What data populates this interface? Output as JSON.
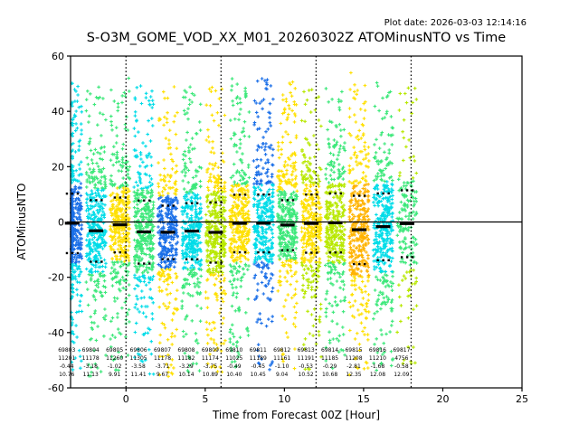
{
  "chart_data": {
    "type": "scatter",
    "title": "S-O3M_GOME_VOD_XX_M01_20260302Z ATOMinusNTO vs Time",
    "plot_date": "Plot date: 2026-03-03 12:14:16",
    "xlabel": "Time from Forecast 00Z [Hour]",
    "ylabel": "ATOMinusNTO",
    "xlim": [
      -3.5,
      25
    ],
    "ylim": [
      -60,
      60
    ],
    "xticks": [
      0,
      5,
      10,
      15,
      20,
      25
    ],
    "yticks": [
      -60,
      -40,
      -20,
      0,
      20,
      40,
      60
    ],
    "synoptic_vlines": [
      0,
      6,
      12,
      18
    ],
    "zero_line": 0,
    "grid": false,
    "legend": "none",
    "marker": "plus",
    "colors": {
      "axis": "#000000",
      "blue": "#1a6fe8",
      "cyan": "#00dce8",
      "green": "#3ce87a",
      "yellowgreen": "#b8e800",
      "yellow": "#ffe000",
      "orange": "#ffb300"
    },
    "orbits": [
      {
        "id": "69803",
        "x": -3.4,
        "count": 11201,
        "mean": -0.44,
        "std": 10.76,
        "core": "#1a6fe8",
        "fringe": "#00dce8"
      },
      {
        "id": "69804",
        "x": -1.89,
        "count": 11178,
        "mean": -3.18,
        "std": 11.13,
        "core": "#00dce8",
        "fringe": "#3ce87a"
      },
      {
        "id": "69805",
        "x": -0.38,
        "count": 11260,
        "mean": -1.02,
        "std": 9.91,
        "core": "#ffe000",
        "fringe": "#3ce87a"
      },
      {
        "id": "69806",
        "x": 1.13,
        "count": 11305,
        "mean": -3.58,
        "std": 11.41,
        "core": "#3ce87a",
        "fringe": "#00dce8"
      },
      {
        "id": "69807",
        "x": 2.64,
        "count": 11178,
        "mean": -3.71,
        "std": 9.67,
        "core": "#1a6fe8",
        "fringe": "#ffe000"
      },
      {
        "id": "69808",
        "x": 4.15,
        "count": 11182,
        "mean": -3.29,
        "std": 10.14,
        "core": "#00dce8",
        "fringe": "#3ce87a"
      },
      {
        "id": "69809",
        "x": 5.66,
        "count": 11174,
        "mean": -3.75,
        "std": 10.89,
        "core": "#b8e800",
        "fringe": "#ffe000"
      },
      {
        "id": "69810",
        "x": 7.17,
        "count": 11025,
        "mean": -0.49,
        "std": 10.4,
        "core": "#ffe000",
        "fringe": "#3ce87a"
      },
      {
        "id": "69811",
        "x": 8.68,
        "count": 11189,
        "mean": -0.45,
        "std": 10.45,
        "core": "#00dce8",
        "fringe": "#1a6fe8"
      },
      {
        "id": "69812",
        "x": 10.19,
        "count": 11161,
        "mean": -1.1,
        "std": 9.04,
        "core": "#3ce87a",
        "fringe": "#ffe000"
      },
      {
        "id": "69813",
        "x": 11.7,
        "count": 11191,
        "mean": -0.53,
        "std": 10.52,
        "core": "#ffe000",
        "fringe": "#b8e800"
      },
      {
        "id": "69814",
        "x": 13.21,
        "count": 11185,
        "mean": -0.29,
        "std": 10.68,
        "core": "#b8e800",
        "fringe": "#3ce87a"
      },
      {
        "id": "69815",
        "x": 14.72,
        "count": 11208,
        "mean": -2.81,
        "std": 12.35,
        "core": "#ffb300",
        "fringe": "#ffe000"
      },
      {
        "id": "69816",
        "x": 16.23,
        "count": 11210,
        "mean": -1.68,
        "std": 12.08,
        "core": "#00dce8",
        "fringe": "#3ce87a"
      },
      {
        "id": "69817",
        "x": 17.74,
        "count": 4756,
        "mean": -0.58,
        "std": 12.09,
        "core": "#3ce87a",
        "fringe": "#b8e800"
      }
    ],
    "stats_rows": [
      "orbit",
      "count",
      "mean",
      "std"
    ]
  }
}
